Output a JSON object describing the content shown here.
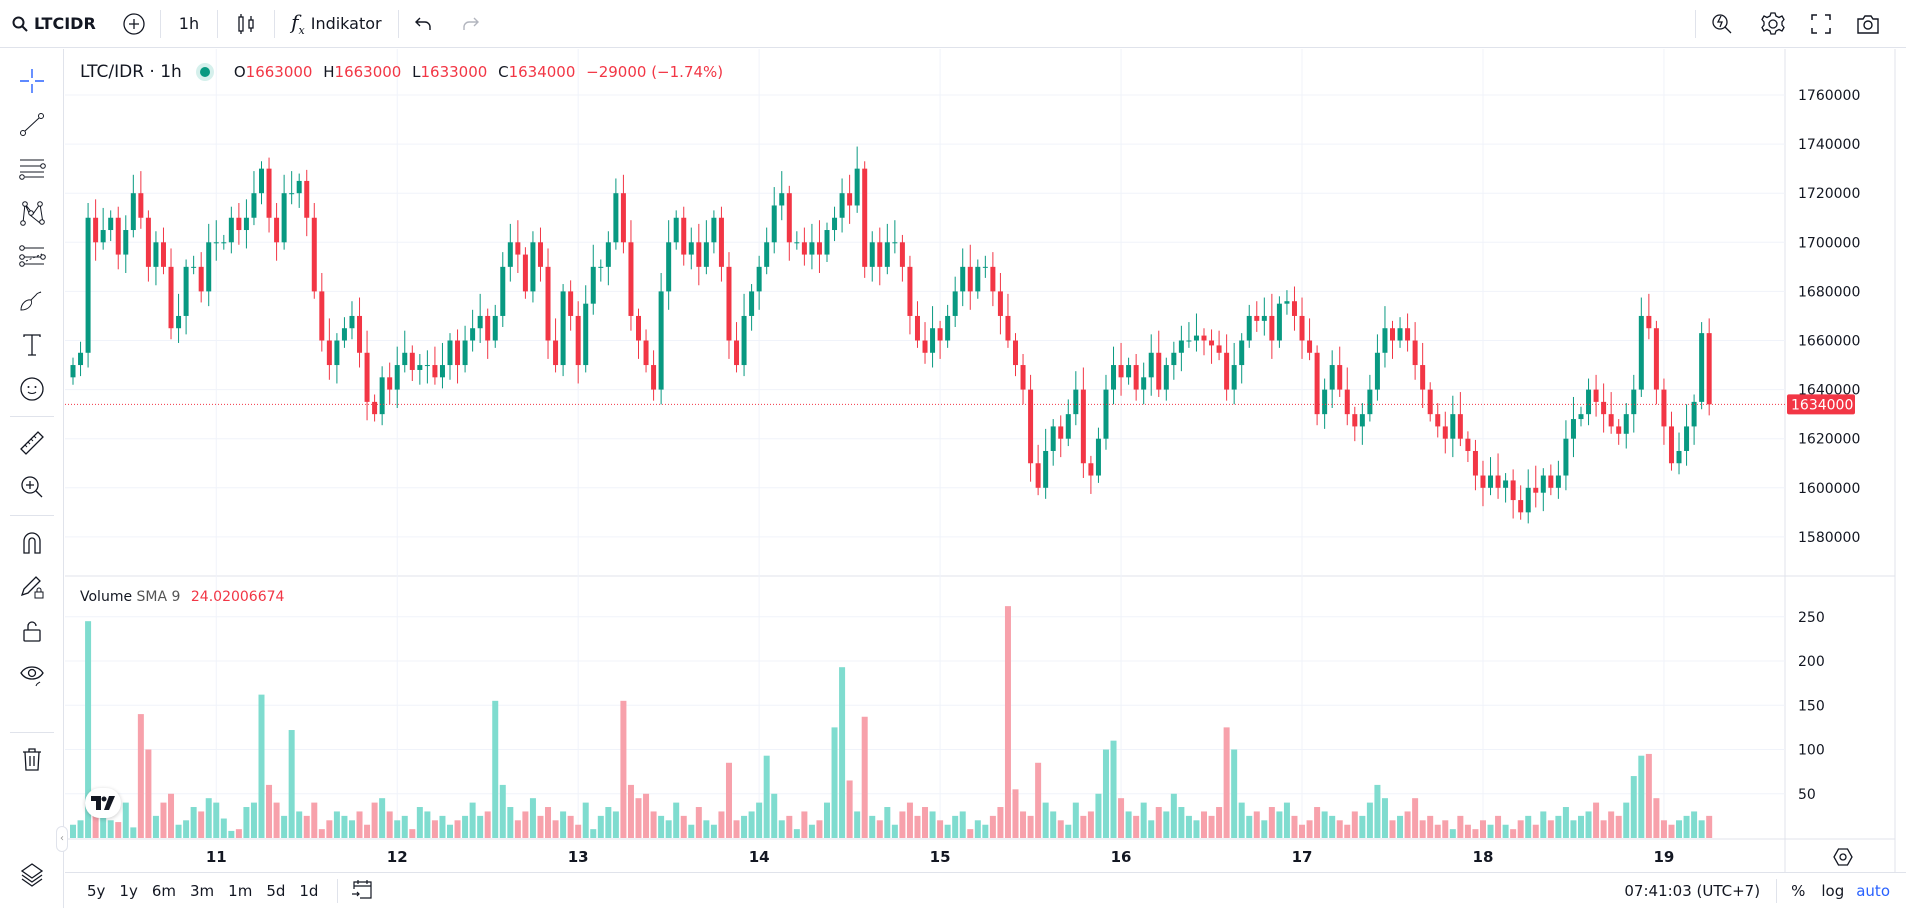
{
  "toolbar": {
    "symbol": "LTCIDR",
    "interval": "1h",
    "indicators_label": "Indikator"
  },
  "legend": {
    "title": "LTC/IDR · 1h",
    "open_label": "O",
    "open": "1663000",
    "high_label": "H",
    "high": "1663000",
    "low_label": "L",
    "low": "1633000",
    "close_label": "C",
    "close": "1634000",
    "change": "−29000 (−1.74%)"
  },
  "volume_legend": {
    "name": "Volume",
    "sma_label": "SMA 9",
    "value": "24.02006674"
  },
  "bottom": {
    "ranges": [
      "5y",
      "1y",
      "6m",
      "3m",
      "1m",
      "5d",
      "1d"
    ],
    "clock": "07:41:03 (UTC+7)",
    "percent": "%",
    "log": "log",
    "auto": "auto"
  },
  "colors": {
    "up": "#089981",
    "down": "#f23645",
    "vol_up": "#7fdccf",
    "vol_down": "#f7a1ab",
    "accent": "#2962ff"
  },
  "chart_data": {
    "type": "candlestick",
    "interval": "1h",
    "price_axis": {
      "ticks": [
        1580000,
        1600000,
        1620000,
        1640000,
        1660000,
        1680000,
        1700000,
        1720000,
        1740000,
        1760000
      ],
      "ylim": [
        1565000,
        1778000
      ]
    },
    "volume_axis": {
      "ticks": [
        50,
        100,
        150,
        200,
        250
      ],
      "ylim": [
        0,
        290
      ]
    },
    "x_ticks": [
      "11",
      "12",
      "13",
      "14",
      "15",
      "16",
      "17",
      "18",
      "19"
    ],
    "first_candle": "10 05:00",
    "last_price": 1634000,
    "last_price_label": "1634000",
    "first_open": 1645000,
    "closes": [
      1650000,
      1655000,
      1710000,
      1700000,
      1705000,
      1710000,
      1695000,
      1705000,
      1720000,
      1710000,
      1690000,
      1700000,
      1690000,
      1665000,
      1670000,
      1690000,
      1690000,
      1680000,
      1700000,
      1700000,
      1700000,
      1710000,
      1705000,
      1710000,
      1720000,
      1730000,
      1710000,
      1700000,
      1720000,
      1720000,
      1725000,
      1710000,
      1680000,
      1660000,
      1650000,
      1660000,
      1665000,
      1670000,
      1655000,
      1635000,
      1630000,
      1645000,
      1640000,
      1650000,
      1655000,
      1648000,
      1650000,
      1650000,
      1645000,
      1650000,
      1660000,
      1650000,
      1660000,
      1665000,
      1670000,
      1660000,
      1670000,
      1690000,
      1700000,
      1695000,
      1680000,
      1700000,
      1690000,
      1660000,
      1650000,
      1680000,
      1670000,
      1650000,
      1675000,
      1690000,
      1690000,
      1700000,
      1720000,
      1700000,
      1670000,
      1660000,
      1650000,
      1640000,
      1680000,
      1700000,
      1710000,
      1695000,
      1700000,
      1690000,
      1700000,
      1710000,
      1690000,
      1660000,
      1650000,
      1670000,
      1680000,
      1690000,
      1700000,
      1715000,
      1720000,
      1700000,
      1700000,
      1695000,
      1700000,
      1695000,
      1705000,
      1710000,
      1720000,
      1715000,
      1730000,
      1690000,
      1700000,
      1690000,
      1700000,
      1700000,
      1690000,
      1670000,
      1660000,
      1655000,
      1665000,
      1660000,
      1670000,
      1680000,
      1690000,
      1680000,
      1690000,
      1690000,
      1680000,
      1670000,
      1660000,
      1650000,
      1640000,
      1610000,
      1600000,
      1615000,
      1625000,
      1620000,
      1630000,
      1640000,
      1610000,
      1605000,
      1620000,
      1640000,
      1650000,
      1645000,
      1650000,
      1640000,
      1645000,
      1655000,
      1640000,
      1650000,
      1655000,
      1660000,
      1660000,
      1662000,
      1660000,
      1658000,
      1655000,
      1640000,
      1650000,
      1660000,
      1670000,
      1668000,
      1670000,
      1660000,
      1675000,
      1676000,
      1670000,
      1660000,
      1655000,
      1630000,
      1640000,
      1650000,
      1640000,
      1630000,
      1625000,
      1630000,
      1640000,
      1655000,
      1665000,
      1660000,
      1665000,
      1660000,
      1650000,
      1640000,
      1630000,
      1625000,
      1620000,
      1630000,
      1620000,
      1615000,
      1605000,
      1600000,
      1605000,
      1600000,
      1603000,
      1595000,
      1590000,
      1600000,
      1598000,
      1605000,
      1600000,
      1605000,
      1620000,
      1628000,
      1630000,
      1640000,
      1635000,
      1630000,
      1625000,
      1622000,
      1630000,
      1640000,
      1670000,
      1665000,
      1640000,
      1625000,
      1610000,
      1615000,
      1625000,
      1635000,
      1663000,
      1634000
    ],
    "volumes": [
      15,
      20,
      245,
      30,
      25,
      20,
      18,
      40,
      12,
      140,
      100,
      25,
      40,
      50,
      15,
      20,
      35,
      30,
      45,
      40,
      22,
      8,
      10,
      35,
      40,
      162,
      60,
      40,
      25,
      122,
      30,
      25,
      40,
      10,
      20,
      30,
      25,
      20,
      30,
      15,
      40,
      45,
      30,
      20,
      25,
      10,
      35,
      30,
      20,
      25,
      15,
      20,
      25,
      40,
      25,
      30,
      155,
      60,
      35,
      20,
      30,
      45,
      25,
      35,
      20,
      30,
      25,
      15,
      40,
      10,
      25,
      35,
      30,
      155,
      60,
      45,
      50,
      30,
      25,
      20,
      40,
      25,
      15,
      35,
      20,
      15,
      30,
      85,
      20,
      25,
      30,
      40,
      93,
      50,
      20,
      25,
      10,
      30,
      15,
      20,
      40,
      125,
      193,
      65,
      30,
      137,
      25,
      20,
      35,
      15,
      30,
      40,
      25,
      35,
      30,
      20,
      15,
      25,
      30,
      10,
      20,
      15,
      25,
      35,
      262,
      55,
      30,
      25,
      85,
      40,
      30,
      20,
      15,
      40,
      25,
      30,
      50,
      100,
      110,
      45,
      30,
      25,
      40,
      20,
      35,
      30,
      50,
      35,
      25,
      20,
      30,
      25,
      35,
      125,
      100,
      40,
      25,
      30,
      20,
      35,
      30,
      40,
      25,
      15,
      20,
      35,
      30,
      25,
      20,
      15,
      30,
      25,
      40,
      60,
      45,
      20,
      25,
      30,
      45,
      20,
      25,
      15,
      20,
      10,
      25,
      15,
      10,
      20,
      15,
      25,
      15,
      10,
      20,
      25,
      15,
      30,
      20,
      25,
      35,
      20,
      25,
      30,
      40,
      20,
      30,
      25,
      40,
      70,
      93,
      95,
      45,
      20,
      15,
      20,
      25,
      30,
      20,
      25
    ]
  }
}
